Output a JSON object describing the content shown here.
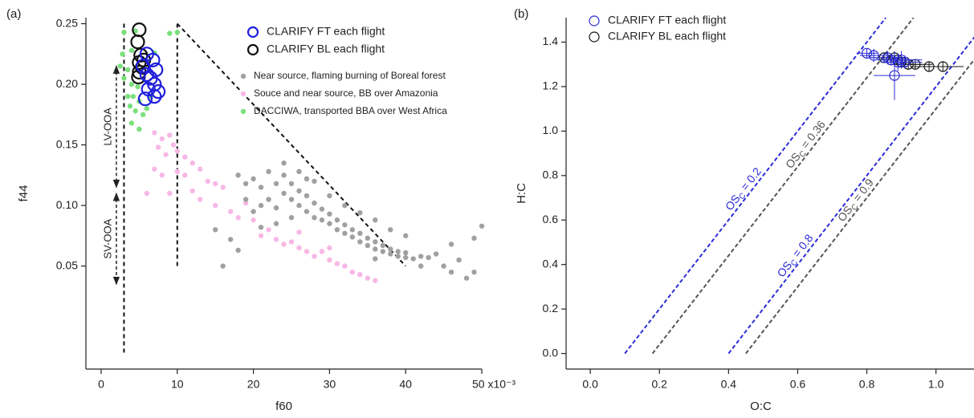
{
  "chart_data": [
    {
      "type": "scatter",
      "panel_label": "(a)",
      "x_label": "f60",
      "y_label": "f44",
      "xlim": [
        -2,
        50
      ],
      "ylim": [
        -0.035,
        0.255
      ],
      "xticks": [
        0,
        10,
        20,
        30,
        40,
        {
          "value": 50,
          "label": "50 x10⁻³"
        }
      ],
      "yticks": [
        0.05,
        {
          "value": 0.1,
          "label": "0.10"
        },
        0.15,
        {
          "value": 0.2,
          "label": "0.20"
        },
        0.25
      ],
      "series": [
        {
          "name": "CLARIFY FT each flight",
          "color": "#1f1fdc",
          "marker": "open-large",
          "x": [
            5.5,
            6,
            6.5,
            7,
            6.2,
            7,
            5.8,
            7.5,
            6.8,
            7.2,
            6
          ],
          "values": [
            0.215,
            0.208,
            0.205,
            0.2,
            0.196,
            0.19,
            0.188,
            0.194,
            0.22,
            0.212,
            0.225
          ]
        },
        {
          "name": "CLARIFY BL each flight",
          "color": "#111111",
          "marker": "open-large",
          "x": [
            5,
            4.8,
            5.2,
            5,
            5.4,
            5,
            5.6,
            4.9
          ],
          "values": [
            0.245,
            0.235,
            0.224,
            0.218,
            0.214,
            0.21,
            0.22,
            0.206
          ]
        },
        {
          "name": "Near source, flaming burning of Boreal forest",
          "color": "#a0a0a0",
          "marker": "dot",
          "x": [
            18,
            19,
            20,
            21,
            22,
            22,
            23,
            23,
            24,
            24,
            25,
            25,
            26,
            26,
            27,
            27,
            28,
            28,
            29,
            29,
            30,
            30,
            31,
            31,
            32,
            32,
            33,
            33,
            34,
            34,
            35,
            35,
            36,
            36,
            37,
            37,
            38,
            38,
            39,
            39,
            40,
            40,
            41,
            42,
            43,
            44,
            45,
            46,
            47,
            48,
            49,
            50,
            49,
            46,
            17,
            18,
            16,
            15,
            20,
            21,
            19,
            24,
            26,
            28,
            30,
            32,
            34,
            36,
            27,
            25,
            23,
            21,
            38,
            40,
            36,
            42
          ],
          "values": [
            0.125,
            0.118,
            0.122,
            0.115,
            0.128,
            0.105,
            0.118,
            0.098,
            0.125,
            0.11,
            0.105,
            0.118,
            0.1,
            0.112,
            0.095,
            0.108,
            0.09,
            0.102,
            0.088,
            0.097,
            0.085,
            0.093,
            0.08,
            0.088,
            0.077,
            0.084,
            0.074,
            0.08,
            0.07,
            0.077,
            0.067,
            0.073,
            0.064,
            0.07,
            0.062,
            0.067,
            0.06,
            0.064,
            0.058,
            0.062,
            0.057,
            0.061,
            0.056,
            0.058,
            0.057,
            0.06,
            0.05,
            0.045,
            0.055,
            0.04,
            0.045,
            0.083,
            0.073,
            0.068,
            0.072,
            0.063,
            0.05,
            0.08,
            0.095,
            0.1,
            0.105,
            0.135,
            0.128,
            0.12,
            0.108,
            0.1,
            0.094,
            0.088,
            0.122,
            0.09,
            0.085,
            0.082,
            0.08,
            0.075,
            0.056,
            0.05
          ]
        },
        {
          "name": "Souce and near source, BB over Amazonia",
          "color": "#f7b8e6",
          "marker": "dot",
          "x": [
            7,
            8,
            9,
            7.5,
            8.5,
            9.5,
            10,
            11,
            12,
            10,
            11,
            13,
            14,
            15,
            12,
            16,
            7,
            8,
            9,
            13,
            15,
            17,
            18,
            20,
            22,
            21,
            23,
            24,
            25,
            26,
            27,
            28,
            29,
            30,
            31,
            32,
            33,
            34,
            35,
            36,
            30,
            26,
            19,
            6
          ],
          "values": [
            0.16,
            0.155,
            0.158,
            0.148,
            0.142,
            0.15,
            0.145,
            0.14,
            0.135,
            0.128,
            0.125,
            0.13,
            0.12,
            0.118,
            0.112,
            0.115,
            0.13,
            0.125,
            0.11,
            0.105,
            0.1,
            0.095,
            0.09,
            0.088,
            0.08,
            0.075,
            0.072,
            0.068,
            0.07,
            0.065,
            0.062,
            0.058,
            0.062,
            0.055,
            0.052,
            0.05,
            0.045,
            0.043,
            0.04,
            0.038,
            0.065,
            0.078,
            0.102,
            0.11
          ]
        },
        {
          "name": "DACCIWA, transported BBA over West Africa",
          "color": "#7be07b",
          "marker": "dot",
          "x": [
            2.5,
            3,
            3.5,
            4,
            4.2,
            3.8,
            4.5,
            5,
            4,
            5,
            3,
            4.5,
            9,
            10,
            7,
            3.5,
            4.8,
            5.5,
            6,
            2.8,
            4,
            6.5
          ],
          "values": [
            0.215,
            0.205,
            0.212,
            0.2,
            0.19,
            0.182,
            0.178,
            0.186,
            0.168,
            0.163,
            0.243,
            0.244,
            0.242,
            0.243,
            0.226,
            0.19,
            0.198,
            0.175,
            0.18,
            0.225,
            0.228,
            0.19
          ]
        }
      ],
      "reference_lines": [
        {
          "x": [
            3,
            3
          ],
          "y": [
            0.25,
            -0.022
          ]
        },
        {
          "x": [
            10,
            10
          ],
          "y": [
            0.25,
            0.05
          ]
        },
        {
          "x": [
            10,
            40
          ],
          "y": [
            0.25,
            0.05
          ]
        }
      ],
      "ranges": [
        {
          "label": "LV-OOA",
          "x": 2,
          "y": [
            0.215,
            0.115
          ]
        },
        {
          "label": "SV-OOA",
          "x": 2,
          "y": [
            0.11,
            0.035
          ]
        }
      ]
    },
    {
      "type": "scatter",
      "panel_label": "(b)",
      "x_label": "O:C",
      "y_label": "H:C",
      "xlim": [
        -0.07,
        1.11
      ],
      "ylim": [
        -0.07,
        1.51
      ],
      "xticks": [
        {
          "value": 0,
          "label": "0.0"
        },
        0.2,
        0.4,
        0.6,
        0.8,
        {
          "value": 1,
          "label": "1.0"
        }
      ],
      "yticks": [
        {
          "value": 0,
          "label": "0.0"
        },
        0.2,
        0.4,
        0.6,
        0.8,
        {
          "value": 1,
          "label": "1.0"
        },
        1.2,
        1.4
      ],
      "series": [
        {
          "name": "CLARIFY FT each flight",
          "color": "#2b2bd8",
          "marker": "open",
          "x": [
            0.8,
            0.82,
            0.86,
            0.87,
            0.88,
            0.89,
            0.9,
            0.91
          ],
          "values": [
            1.35,
            1.34,
            1.33,
            1.32,
            1.25,
            1.31,
            1.32,
            1.31
          ],
          "yerr": [
            0.02,
            0.03,
            0.03,
            0.02,
            0.11,
            0.04,
            0.04,
            0.03
          ],
          "xerr": [
            0.03,
            0.04,
            0.05,
            0.04,
            0.06,
            0.05,
            0.06,
            0.05
          ]
        },
        {
          "name": "CLARIFY BL each flight",
          "color": "#111111",
          "marker": "open",
          "x": [
            0.85,
            0.87,
            0.88,
            0.89,
            0.9,
            0.91,
            0.92,
            0.94,
            0.98,
            1.02
          ],
          "values": [
            1.33,
            1.32,
            1.33,
            1.32,
            1.31,
            1.31,
            1.3,
            1.3,
            1.29,
            1.29
          ],
          "yerr": [
            0.02,
            0.02,
            0.02,
            0.02,
            0.02,
            0.02,
            0.02,
            0.02,
            0.02,
            0.02
          ],
          "xerr": [
            0.04,
            0.04,
            0.04,
            0.04,
            0.04,
            0.04,
            0.04,
            0.05,
            0.05,
            0.06
          ]
        }
      ],
      "os_lines": [
        {
          "name": "OS",
          "sub": "C",
          "label": "= 0.2",
          "value": 0.2,
          "color": "#2b2bd8"
        },
        {
          "name": "OS",
          "sub": "C",
          "label": "= 0.36",
          "value": 0.36,
          "color": "#555555"
        },
        {
          "name": "OS",
          "sub": "C",
          "label": "= 0.8",
          "value": 0.8,
          "color": "#2b2bd8"
        },
        {
          "name": "OS",
          "sub": "C",
          "label": "= 0.9",
          "value": 0.9,
          "color": "#555555"
        }
      ]
    }
  ]
}
